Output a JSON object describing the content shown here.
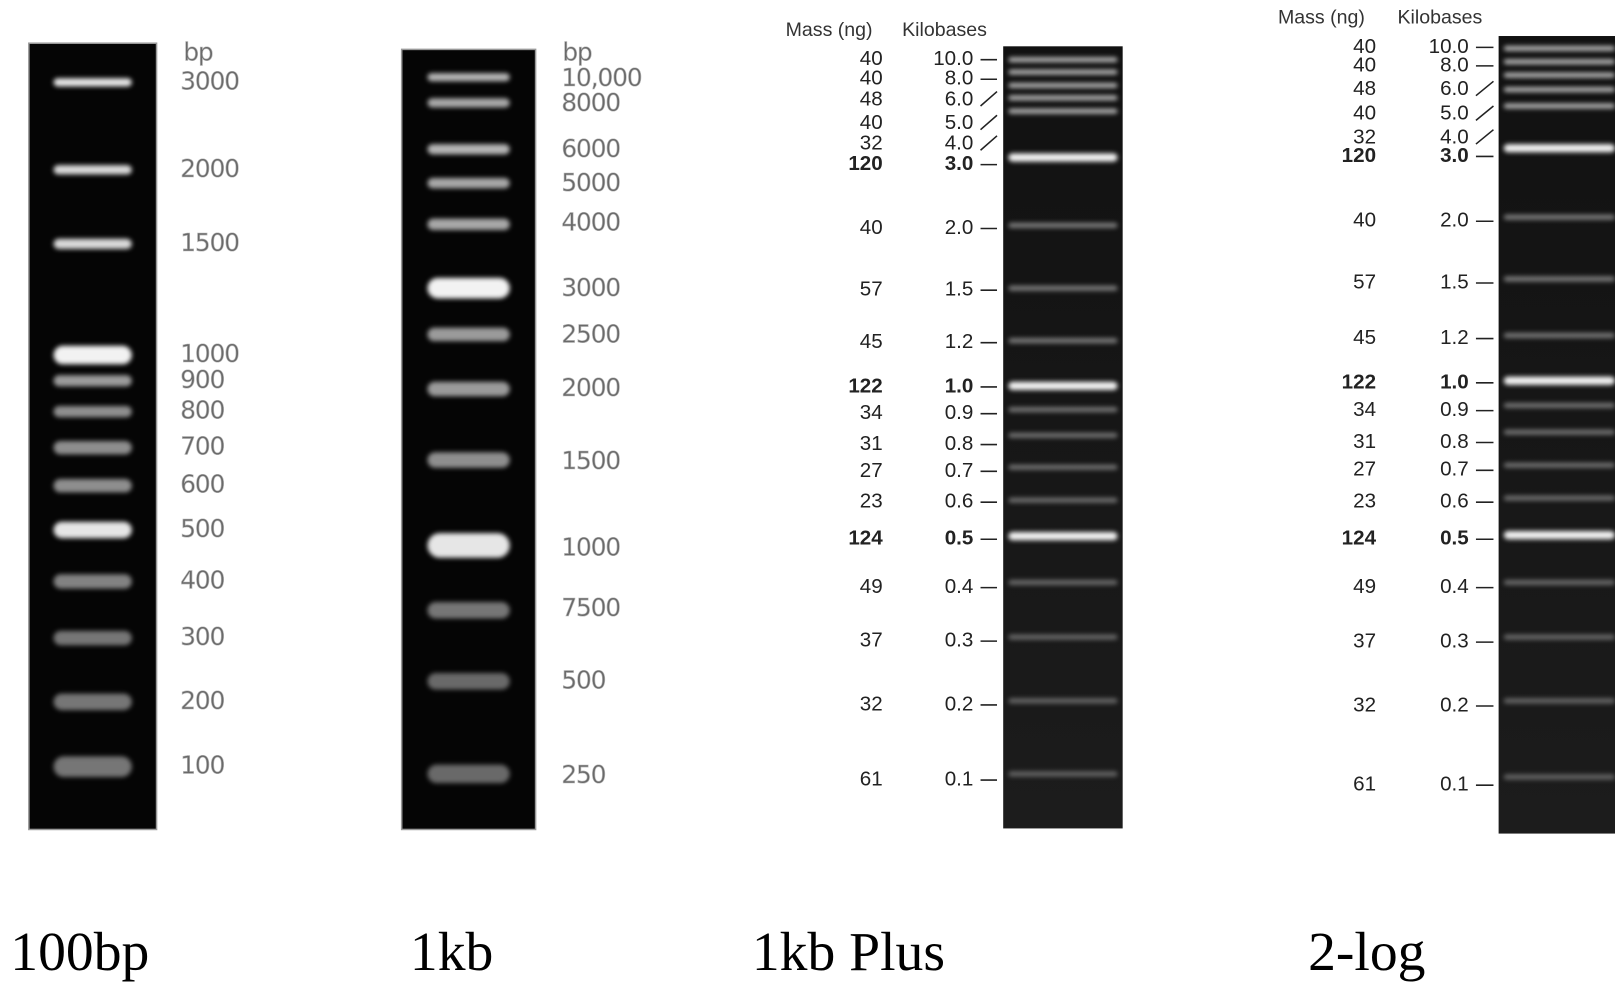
{
  "ladders": [
    {
      "name": "100bp",
      "unit": "bp",
      "labels": [
        "3000",
        "2000",
        "1500",
        "1000",
        "900",
        "800",
        "700",
        "600",
        "500",
        "400",
        "300",
        "200",
        "100"
      ]
    },
    {
      "name": "1kb",
      "unit": "bp",
      "labels": [
        "10,000",
        "8000",
        "6000",
        "5000",
        "4000",
        "3000",
        "2500",
        "2000",
        "1500",
        "1000",
        "7500",
        "500",
        "250"
      ]
    },
    {
      "name": "1kb Plus",
      "headers": [
        "Mass (ng)",
        "Kilobases"
      ],
      "rows": [
        [
          "40",
          "10.0"
        ],
        [
          "40",
          "8.0"
        ],
        [
          "48",
          "6.0"
        ],
        [
          "40",
          "5.0"
        ],
        [
          "32",
          "4.0"
        ],
        [
          "120",
          "3.0"
        ],
        [
          "40",
          "2.0"
        ],
        [
          "57",
          "1.5"
        ],
        [
          "45",
          "1.2"
        ],
        [
          "122",
          "1.0"
        ],
        [
          "34",
          "0.9"
        ],
        [
          "31",
          "0.8"
        ],
        [
          "27",
          "0.7"
        ],
        [
          "23",
          "0.6"
        ],
        [
          "124",
          "0.5"
        ],
        [
          "49",
          "0.4"
        ],
        [
          "37",
          "0.3"
        ],
        [
          "32",
          "0.2"
        ],
        [
          "61",
          "0.1"
        ]
      ]
    },
    {
      "name": "2-log",
      "headers": [
        "Mass (ng)",
        "Kilobases"
      ],
      "rows": [
        [
          "40",
          "10.0"
        ],
        [
          "40",
          "8.0"
        ],
        [
          "48",
          "6.0"
        ],
        [
          "40",
          "5.0"
        ],
        [
          "32",
          "4.0"
        ],
        [
          "120",
          "3.0"
        ],
        [
          "40",
          "2.0"
        ],
        [
          "57",
          "1.5"
        ],
        [
          "45",
          "1.2"
        ],
        [
          "122",
          "1.0"
        ],
        [
          "34",
          "0.9"
        ],
        [
          "31",
          "0.8"
        ],
        [
          "27",
          "0.7"
        ],
        [
          "23",
          "0.6"
        ],
        [
          "124",
          "0.5"
        ],
        [
          "49",
          "0.4"
        ],
        [
          "37",
          "0.3"
        ],
        [
          "32",
          "0.2"
        ],
        [
          "61",
          "0.1"
        ]
      ]
    }
  ]
}
